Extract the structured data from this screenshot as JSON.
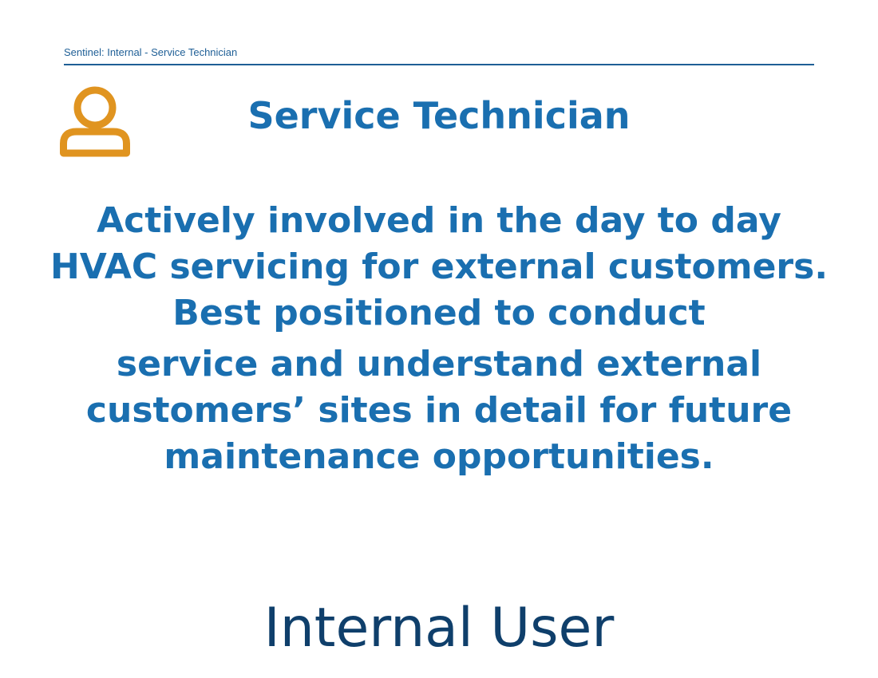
{
  "header": {
    "label": "Sentinel: Internal - Service Technician"
  },
  "role": {
    "icon": "person-icon",
    "icon_color": "#e09420",
    "title": "Service Technician"
  },
  "description": {
    "paragraph_1": "Actively involved in the day to day HVAC servicing for external customers. Best positioned to conduct",
    "paragraph_2": "service and understand external customers’ sites in detail for future maintenance opportunities."
  },
  "user_type": {
    "label": "Internal User"
  },
  "colors": {
    "primary_blue": "#1a6fb0",
    "dark_blue": "#0f3f6b",
    "accent_orange": "#e09420"
  }
}
